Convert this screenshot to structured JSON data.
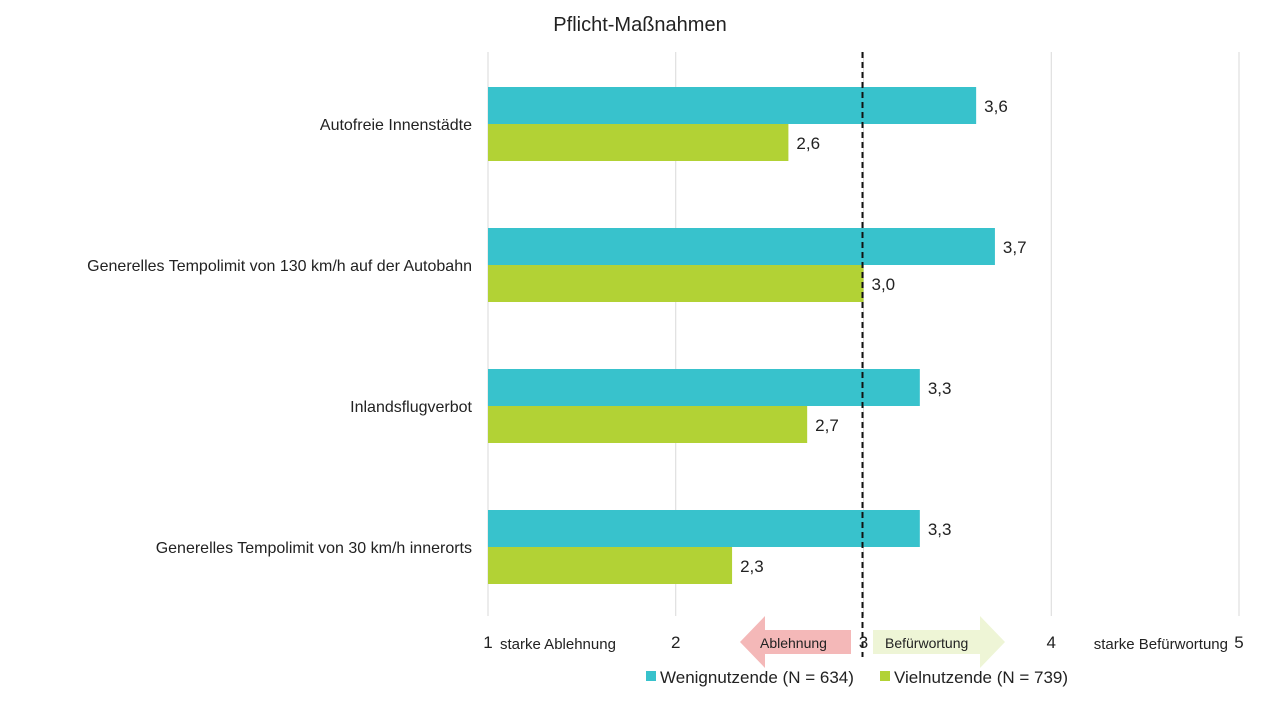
{
  "chart_data": {
    "type": "bar",
    "orientation": "horizontal",
    "title": "Pflicht-Maßnahmen",
    "categories": [
      "Autofreie Innenstädte",
      "Generelles Tempolimit von 130 km/h auf der Autobahn",
      "Inlandsflugverbot",
      "Generelles Tempolimit von 30 km/h innerorts"
    ],
    "series": [
      {
        "name": "Wenignutzende (N = 634)",
        "color": "#38c2cc",
        "values": [
          3.6,
          3.7,
          3.3,
          3.3
        ],
        "labels": [
          "3,6",
          "3,7",
          "3,3",
          "3,3"
        ]
      },
      {
        "name": "Vielnutzende (N = 739)",
        "color": "#b2d235",
        "values": [
          2.6,
          3.0,
          2.7,
          2.3
        ],
        "labels": [
          "2,6",
          "3,0",
          "2,7",
          "2,3"
        ]
      }
    ],
    "xlim": [
      1,
      5
    ],
    "xticks": [
      "1",
      "2",
      "3",
      "4",
      "5"
    ],
    "reference_line": 3,
    "scale_labels": {
      "low": "starke Ablehnung",
      "high": "starke Befürwortung"
    },
    "arrows": {
      "left": {
        "label": "Ablehnung",
        "color": "#f4b8b8"
      },
      "right": {
        "label": "Befürwortung",
        "color": "#eef5d6"
      }
    },
    "grid": true,
    "legend_position": "bottom"
  }
}
